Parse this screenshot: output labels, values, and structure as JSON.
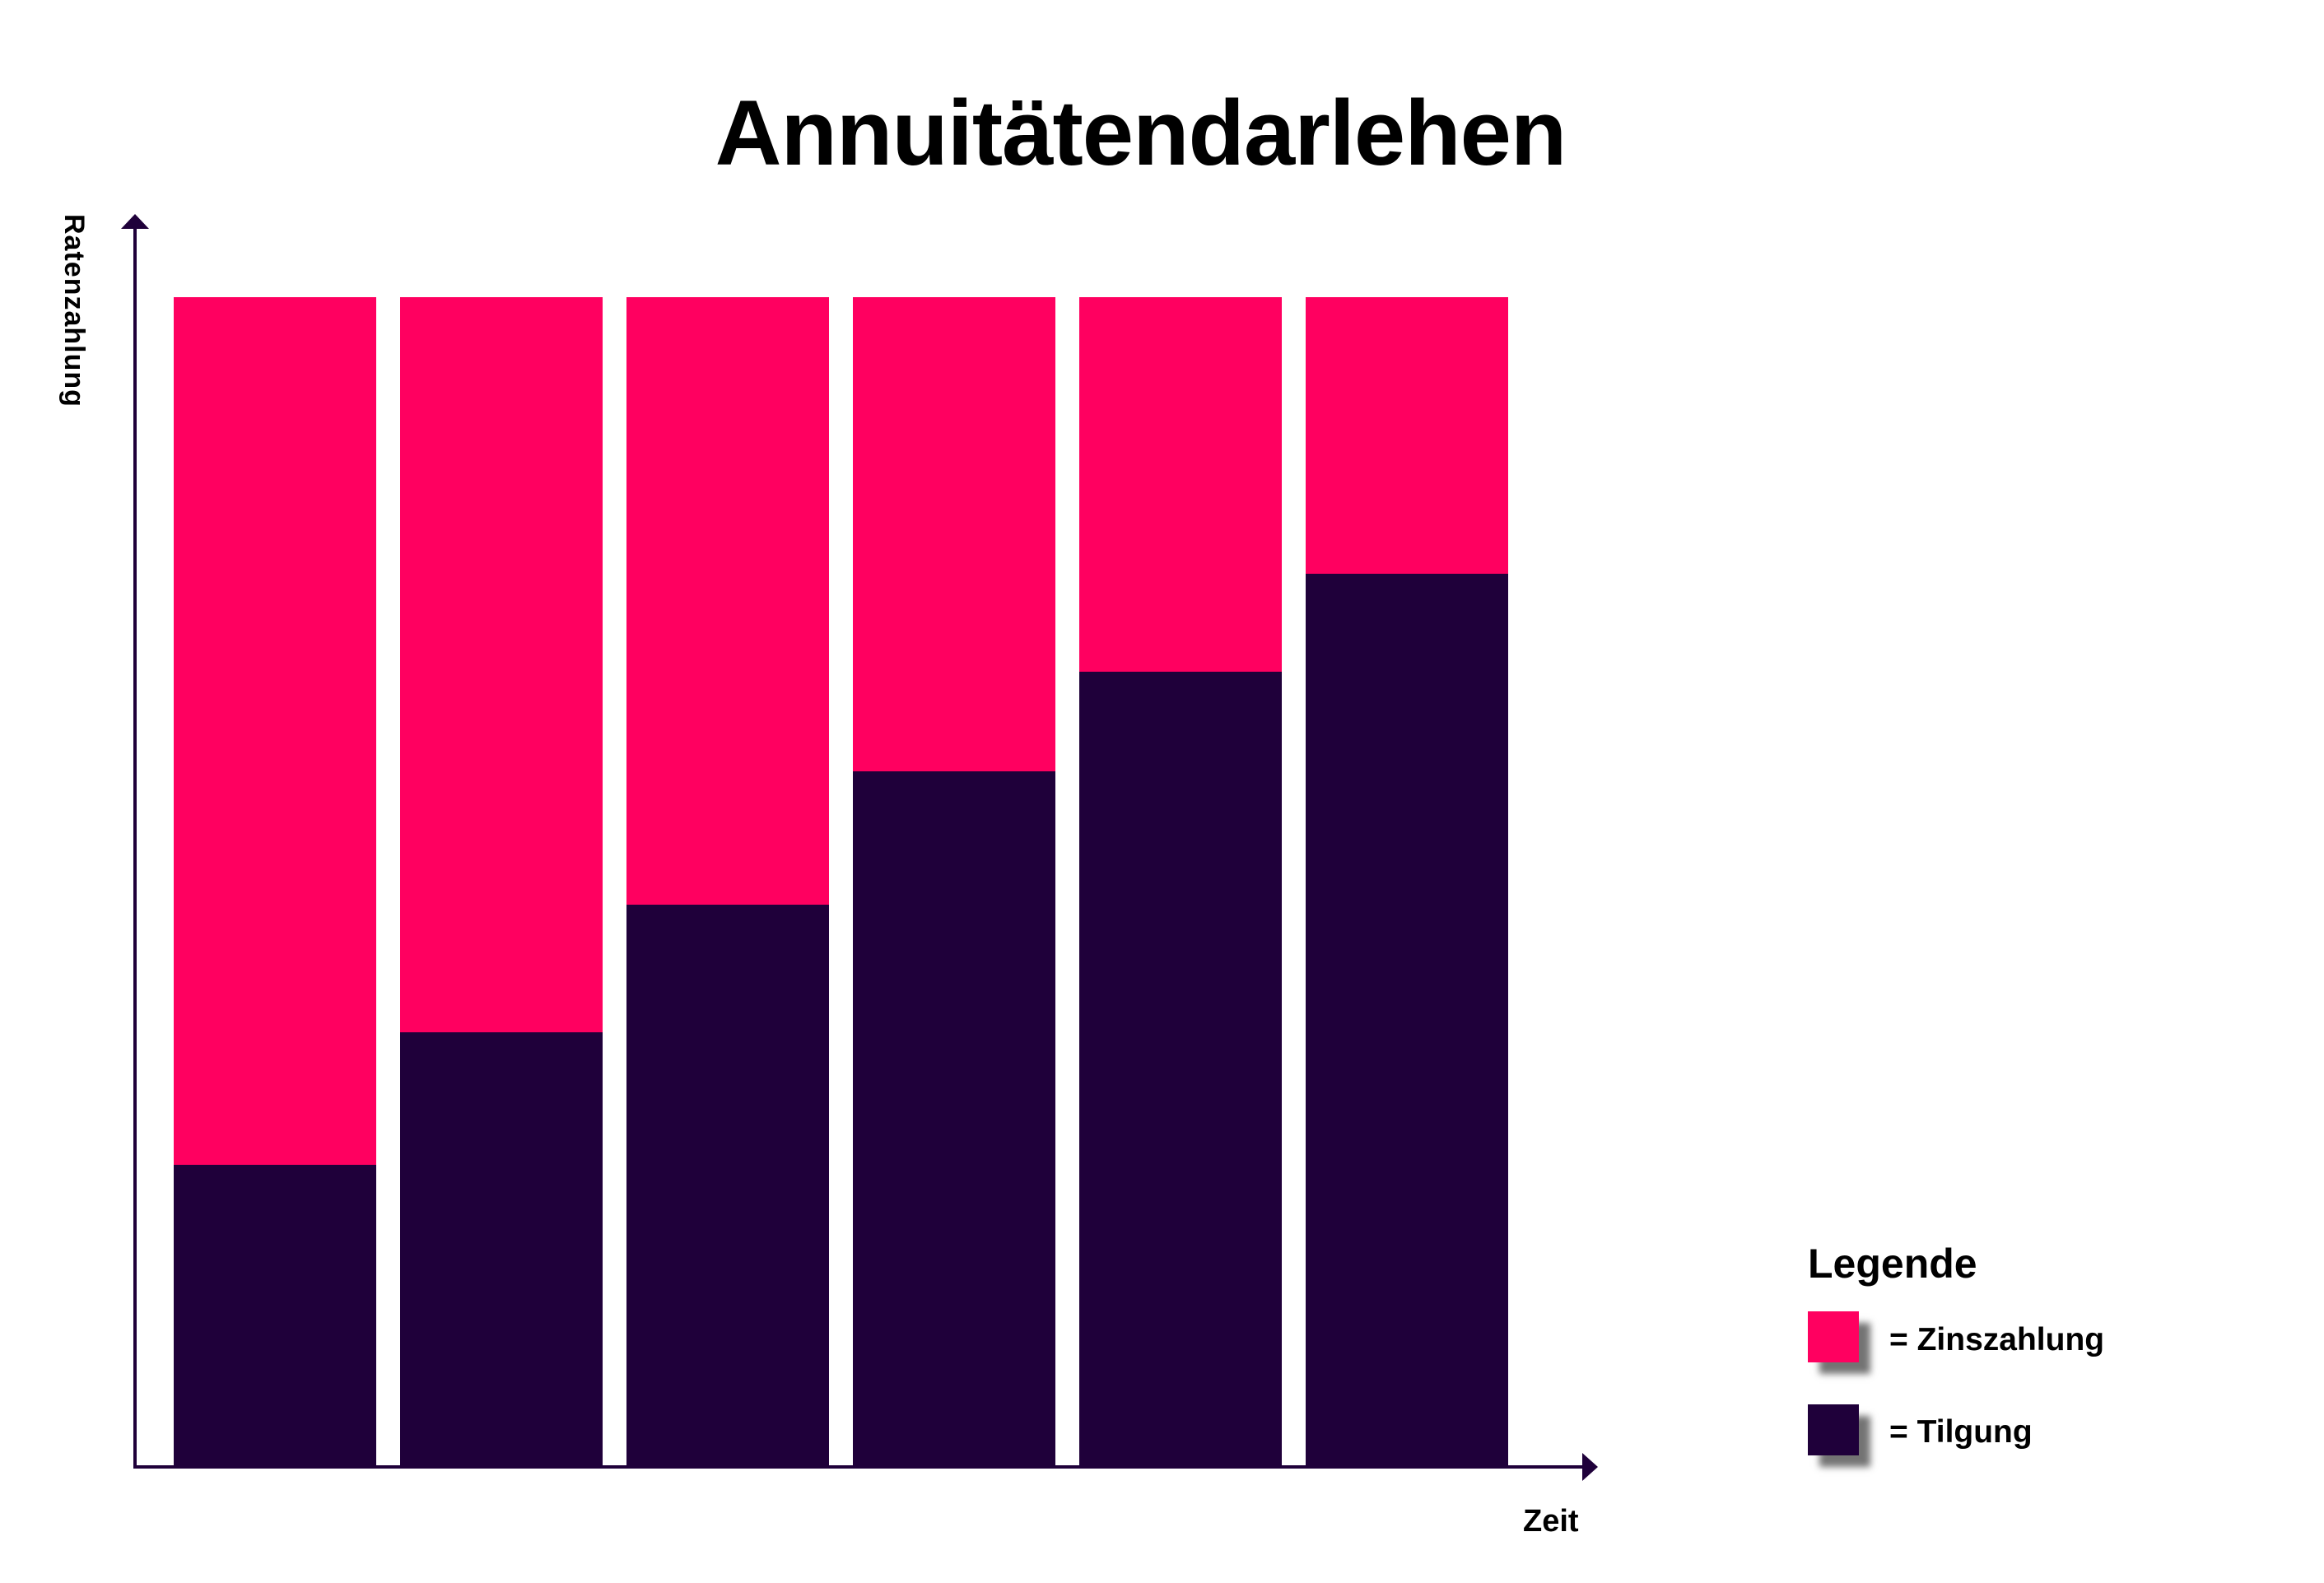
{
  "chart_data": {
    "type": "bar",
    "stacked": true,
    "title": "Annuitätendarlehen",
    "xlabel": "Zeit",
    "ylabel": "Ratenzahlung",
    "categories": [
      "1",
      "2",
      "3",
      "4",
      "5",
      "6"
    ],
    "series": [
      {
        "name": "Tilgung",
        "color": "#1f003a",
        "values": [
          25.7,
          37.1,
          48.0,
          59.4,
          67.9,
          76.3
        ]
      },
      {
        "name": "Zinszahlung",
        "color": "#ff0060",
        "values": [
          74.3,
          62.9,
          52.0,
          40.6,
          32.1,
          23.7
        ]
      }
    ],
    "ylim": [
      0,
      100
    ],
    "grid": false,
    "tick_labels_shown": false,
    "legend_position": "bottom-right",
    "note": "Values are relative shares (%) of a constant annuity payment estimated from bar pixel heights; axes have no numeric ticks."
  },
  "title": "Annuitätendarlehen",
  "axes": {
    "y_label": "Ratenzahlung",
    "x_label": "Zeit"
  },
  "colors": {
    "zins": "#ff0060",
    "tilgung": "#1f003a",
    "axis": "#1f003a"
  },
  "legend": {
    "title": "Legende",
    "items": [
      {
        "label": "= Zinszahlung",
        "color": "#ff0060"
      },
      {
        "label": "= Tilgung",
        "color": "#1f003a"
      }
    ]
  }
}
